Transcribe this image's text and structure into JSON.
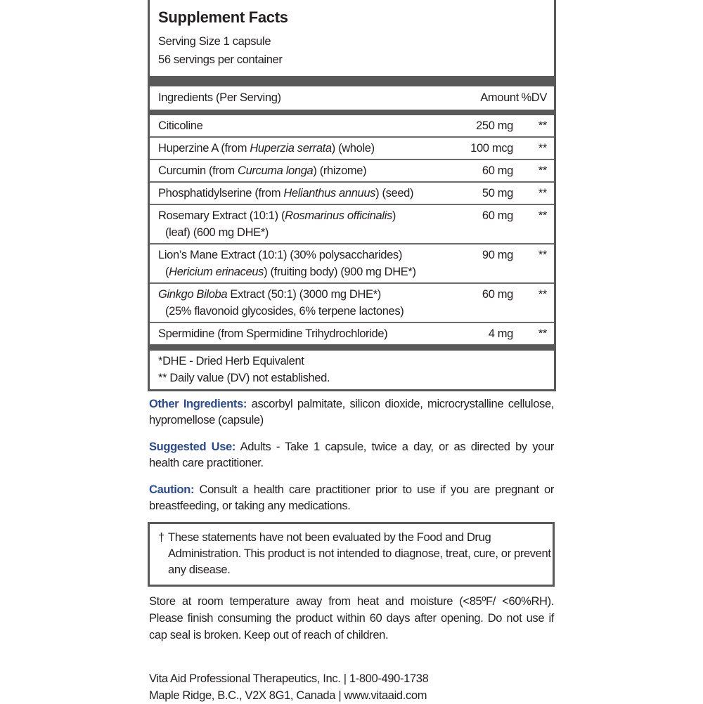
{
  "facts": {
    "title": "Supplement Facts",
    "serving_size": "Serving Size 1 capsule",
    "servings_per_container": "56 servings per container",
    "header": {
      "ingredients": "Ingredients (Per Serving)",
      "amount": "Amount",
      "dv": "%DV"
    },
    "rows": [
      {
        "lines": [
          [
            {
              "text": "Citicoline",
              "italic": false
            }
          ]
        ],
        "amount": "250 mg",
        "dv": "**"
      },
      {
        "lines": [
          [
            {
              "text": "Huperzine A (from ",
              "italic": false
            },
            {
              "text": "Huperzia serrata",
              "italic": true
            },
            {
              "text": ") (whole)",
              "italic": false
            }
          ]
        ],
        "amount": "100 mcg",
        "dv": "**"
      },
      {
        "lines": [
          [
            {
              "text": "Curcumin (from ",
              "italic": false
            },
            {
              "text": "Curcuma longa",
              "italic": true
            },
            {
              "text": ") (rhizome)",
              "italic": false
            }
          ]
        ],
        "amount": "60 mg",
        "dv": "**"
      },
      {
        "lines": [
          [
            {
              "text": "Phosphatidylserine (from ",
              "italic": false
            },
            {
              "text": "Helianthus annuus",
              "italic": true
            },
            {
              "text": ") (seed)",
              "italic": false
            }
          ]
        ],
        "amount": "50 mg",
        "dv": "**"
      },
      {
        "lines": [
          [
            {
              "text": "Rosemary Extract (10:1) (",
              "italic": false
            },
            {
              "text": "Rosmarinus officinalis",
              "italic": true
            },
            {
              "text": ")",
              "italic": false
            }
          ],
          [
            {
              "text": "(leaf) (600 mg DHE*)",
              "italic": false
            }
          ]
        ],
        "amount": "60 mg",
        "dv": "**"
      },
      {
        "lines": [
          [
            {
              "text": "Lion’s Mane Extract (10:1) (30% polysaccharides)",
              "italic": false
            }
          ],
          [
            {
              "text": "(",
              "italic": false
            },
            {
              "text": "Hericium erinaceus",
              "italic": true
            },
            {
              "text": ") (fruiting body) (900 mg DHE*)",
              "italic": false
            }
          ]
        ],
        "amount": "90 mg",
        "dv": "**"
      },
      {
        "lines": [
          [
            {
              "text": "Ginkgo Biloba",
              "italic": true
            },
            {
              "text": " Extract (50:1) (3000 mg DHE*)",
              "italic": false
            }
          ],
          [
            {
              "text": "(25% flavonoid glycosides, 6% terpene lactones)",
              "italic": false
            }
          ]
        ],
        "amount": "60 mg",
        "dv": "**"
      },
      {
        "lines": [
          [
            {
              "text": "Spermidine (from Spermidine Trihydrochloride)",
              "italic": false
            }
          ]
        ],
        "amount": "4 mg",
        "dv": "**"
      }
    ],
    "footnotes": [
      "*DHE - Dried Herb Equivalent",
      "** Daily value (DV) not established."
    ]
  },
  "other_ingredients": {
    "label": "Other Ingredients:",
    "text": " ascorbyl palmitate, silicon dioxide, microcrystalline cellulose, hypromellose (capsule)"
  },
  "suggested_use": {
    "label": "Suggested Use:",
    "text": " Adults - Take 1 capsule, twice a day, or as directed by your health care practitioner."
  },
  "caution": {
    "label": "Caution:",
    "text": " Consult a health care practitioner prior to use if you are pregnant or breastfeeding, or taking any medications."
  },
  "disclaimer": {
    "symbol": "†",
    "text": "These statements have not been evaluated by the Food and Drug Administration. This product is not intended to diagnose, treat, cure, or prevent any disease."
  },
  "storage": "Store at room temperature away from heat and moisture (<85ºF/ <60%RH). Please finish consuming the product within 60 days after opening. Do not use if cap seal is broken. Keep out of reach of children.",
  "company": {
    "line1": "Vita Aid Professional Therapeutics, Inc. | 1-800-490-1738",
    "line2": "Maple Ridge, B.C., V2X 8G1, Canada | www.vitaaid.com"
  },
  "colors": {
    "label_blue": "#2b4a8f",
    "border": "#595959"
  }
}
